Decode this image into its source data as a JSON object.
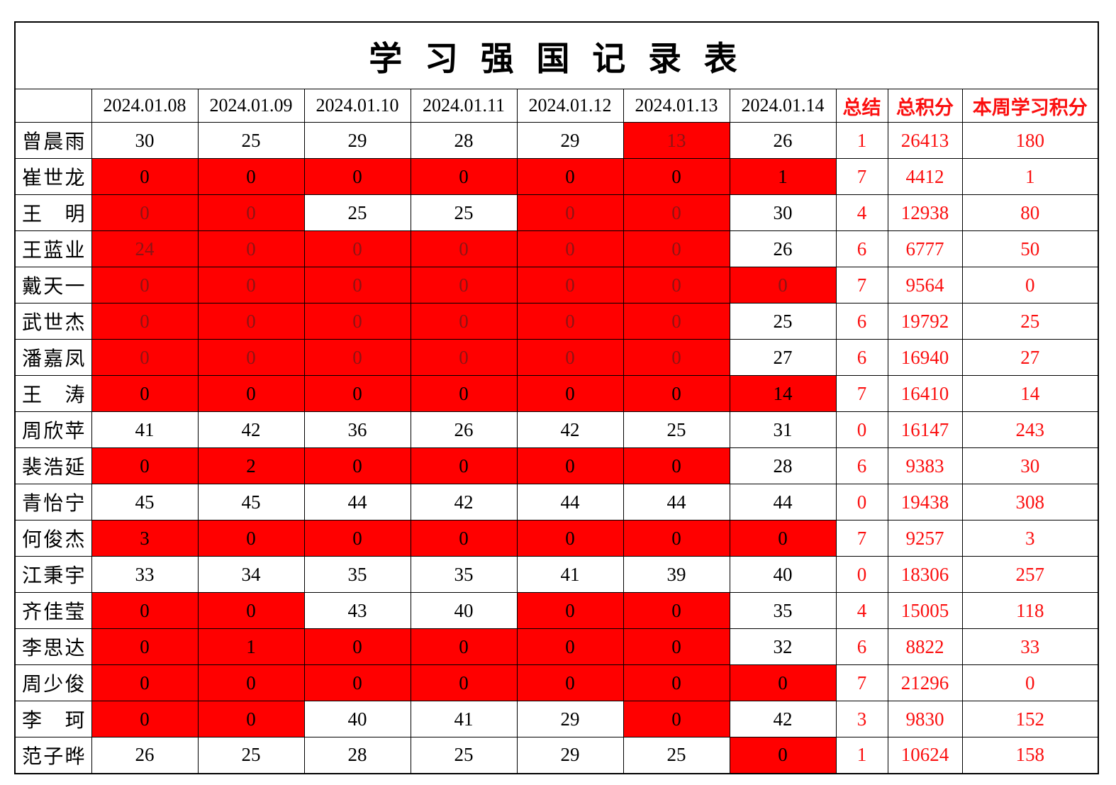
{
  "title": "学 习 强 国 记 录 表",
  "header": {
    "dates": [
      "2024.01.08",
      "2024.01.09",
      "2024.01.10",
      "2024.01.11",
      "2024.01.12",
      "2024.01.13",
      "2024.01.14"
    ],
    "summary": "总结",
    "total": "总积分",
    "week": "本周学习积分"
  },
  "colors": {
    "highlight_bg": "#ff0000",
    "accent_text": "#fb0f0f",
    "dim_text_on_red": "#8d1414",
    "border": "#000000"
  },
  "rows": [
    {
      "name": "曾晨雨",
      "days": [
        [
          "30",
          "w"
        ],
        [
          "25",
          "w"
        ],
        [
          "29",
          "w"
        ],
        [
          "28",
          "w"
        ],
        [
          "29",
          "w"
        ],
        [
          "13",
          "rd"
        ],
        [
          "26",
          "w"
        ]
      ],
      "summary": "1",
      "total": "26413",
      "week": "180"
    },
    {
      "name": "崔世龙",
      "days": [
        [
          "0",
          "rb"
        ],
        [
          "0",
          "rb"
        ],
        [
          "0",
          "rb"
        ],
        [
          "0",
          "rb"
        ],
        [
          "0",
          "rb"
        ],
        [
          "0",
          "rb"
        ],
        [
          "1",
          "rb"
        ]
      ],
      "summary": "7",
      "total": "4412",
      "week": "1"
    },
    {
      "name": "王　明",
      "days": [
        [
          "0",
          "rd"
        ],
        [
          "0",
          "rd"
        ],
        [
          "25",
          "w"
        ],
        [
          "25",
          "w"
        ],
        [
          "0",
          "rd"
        ],
        [
          "0",
          "rd"
        ],
        [
          "30",
          "w"
        ]
      ],
      "summary": "4",
      "total": "12938",
      "week": "80"
    },
    {
      "name": "王蓝业",
      "days": [
        [
          "24",
          "rd"
        ],
        [
          "0",
          "rd"
        ],
        [
          "0",
          "rd"
        ],
        [
          "0",
          "rd"
        ],
        [
          "0",
          "rd"
        ],
        [
          "0",
          "rd"
        ],
        [
          "26",
          "w"
        ]
      ],
      "summary": "6",
      "total": "6777",
      "week": "50"
    },
    {
      "name": "戴天一",
      "days": [
        [
          "0",
          "rd"
        ],
        [
          "0",
          "rd"
        ],
        [
          "0",
          "rd"
        ],
        [
          "0",
          "rd"
        ],
        [
          "0",
          "rd"
        ],
        [
          "0",
          "rd"
        ],
        [
          "0",
          "rd"
        ]
      ],
      "summary": "7",
      "total": "9564",
      "week": "0"
    },
    {
      "name": "武世杰",
      "days": [
        [
          "0",
          "rd"
        ],
        [
          "0",
          "rd"
        ],
        [
          "0",
          "rd"
        ],
        [
          "0",
          "rd"
        ],
        [
          "0",
          "rd"
        ],
        [
          "0",
          "rd"
        ],
        [
          "25",
          "w"
        ]
      ],
      "summary": "6",
      "total": "19792",
      "week": "25"
    },
    {
      "name": "潘嘉凤",
      "days": [
        [
          "0",
          "rd"
        ],
        [
          "0",
          "rd"
        ],
        [
          "0",
          "rd"
        ],
        [
          "0",
          "rd"
        ],
        [
          "0",
          "rd"
        ],
        [
          "0",
          "rd"
        ],
        [
          "27",
          "w"
        ]
      ],
      "summary": "6",
      "total": "16940",
      "week": "27"
    },
    {
      "name": "王　涛",
      "days": [
        [
          "0",
          "rb"
        ],
        [
          "0",
          "rb"
        ],
        [
          "0",
          "rb"
        ],
        [
          "0",
          "rb"
        ],
        [
          "0",
          "rb"
        ],
        [
          "0",
          "rb"
        ],
        [
          "14",
          "rb"
        ]
      ],
      "summary": "7",
      "total": "16410",
      "week": "14"
    },
    {
      "name": "周欣苹",
      "days": [
        [
          "41",
          "w"
        ],
        [
          "42",
          "w"
        ],
        [
          "36",
          "w"
        ],
        [
          "26",
          "w"
        ],
        [
          "42",
          "w"
        ],
        [
          "25",
          "w"
        ],
        [
          "31",
          "w"
        ]
      ],
      "summary": "0",
      "total": "16147",
      "week": "243"
    },
    {
      "name": "裴浩延",
      "days": [
        [
          "0",
          "rb"
        ],
        [
          "2",
          "rb"
        ],
        [
          "0",
          "rb"
        ],
        [
          "0",
          "rb"
        ],
        [
          "0",
          "rb"
        ],
        [
          "0",
          "rb"
        ],
        [
          "28",
          "w"
        ]
      ],
      "summary": "6",
      "total": "9383",
      "week": "30"
    },
    {
      "name": "青怡宁",
      "days": [
        [
          "45",
          "w"
        ],
        [
          "45",
          "w"
        ],
        [
          "44",
          "w"
        ],
        [
          "42",
          "w"
        ],
        [
          "44",
          "w"
        ],
        [
          "44",
          "w"
        ],
        [
          "44",
          "w"
        ]
      ],
      "summary": "0",
      "total": "19438",
      "week": "308"
    },
    {
      "name": "何俊杰",
      "days": [
        [
          "3",
          "rb"
        ],
        [
          "0",
          "rb"
        ],
        [
          "0",
          "rb"
        ],
        [
          "0",
          "rb"
        ],
        [
          "0",
          "rb"
        ],
        [
          "0",
          "rb"
        ],
        [
          "0",
          "rb"
        ]
      ],
      "summary": "7",
      "total": "9257",
      "week": "3"
    },
    {
      "name": "江秉宇",
      "days": [
        [
          "33",
          "w"
        ],
        [
          "34",
          "w"
        ],
        [
          "35",
          "w"
        ],
        [
          "35",
          "w"
        ],
        [
          "41",
          "w"
        ],
        [
          "39",
          "w"
        ],
        [
          "40",
          "w"
        ]
      ],
      "summary": "0",
      "total": "18306",
      "week": "257"
    },
    {
      "name": "齐佳莹",
      "days": [
        [
          "0",
          "rb"
        ],
        [
          "0",
          "rb"
        ],
        [
          "43",
          "w"
        ],
        [
          "40",
          "w"
        ],
        [
          "0",
          "rb"
        ],
        [
          "0",
          "rb"
        ],
        [
          "35",
          "w"
        ]
      ],
      "summary": "4",
      "total": "15005",
      "week": "118"
    },
    {
      "name": "李思达",
      "days": [
        [
          "0",
          "rb"
        ],
        [
          "1",
          "rb"
        ],
        [
          "0",
          "rb"
        ],
        [
          "0",
          "rb"
        ],
        [
          "0",
          "rb"
        ],
        [
          "0",
          "rb"
        ],
        [
          "32",
          "w"
        ]
      ],
      "summary": "6",
      "total": "8822",
      "week": "33"
    },
    {
      "name": "周少俊",
      "days": [
        [
          "0",
          "rb"
        ],
        [
          "0",
          "rb"
        ],
        [
          "0",
          "rb"
        ],
        [
          "0",
          "rb"
        ],
        [
          "0",
          "rb"
        ],
        [
          "0",
          "rb"
        ],
        [
          "0",
          "rb"
        ]
      ],
      "summary": "7",
      "total": "21296",
      "week": "0"
    },
    {
      "name": "李　珂",
      "days": [
        [
          "0",
          "rb"
        ],
        [
          "0",
          "rb"
        ],
        [
          "40",
          "w"
        ],
        [
          "41",
          "w"
        ],
        [
          "29",
          "w"
        ],
        [
          "0",
          "rb"
        ],
        [
          "42",
          "w"
        ]
      ],
      "summary": "3",
      "total": "9830",
      "week": "152"
    },
    {
      "name": "范子晔",
      "days": [
        [
          "26",
          "w"
        ],
        [
          "25",
          "w"
        ],
        [
          "28",
          "w"
        ],
        [
          "25",
          "w"
        ],
        [
          "29",
          "w"
        ],
        [
          "25",
          "w"
        ],
        [
          "0",
          "rb"
        ]
      ],
      "summary": "1",
      "total": "10624",
      "week": "158"
    }
  ]
}
